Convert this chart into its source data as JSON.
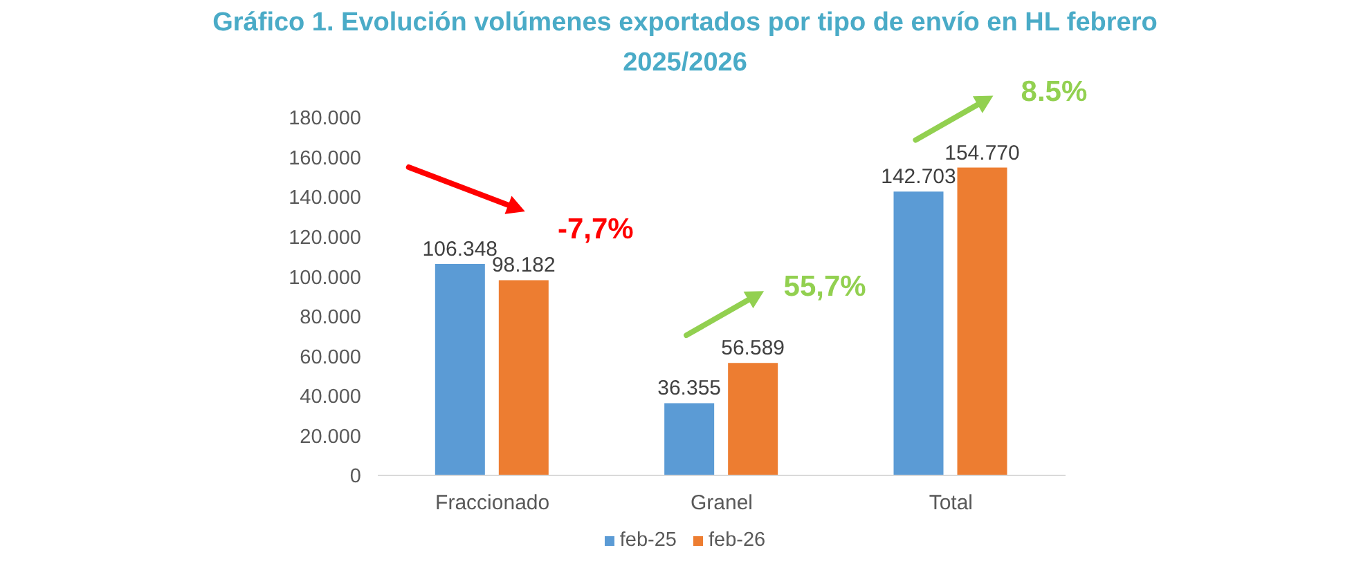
{
  "chart_data": {
    "type": "bar",
    "title": "Gráfico 1. Evolución volúmenes exportados por tipo de envío en HL febrero 2025/2026",
    "categories": [
      "Fraccionado",
      "Granel",
      "Total"
    ],
    "series": [
      {
        "name": "feb-25",
        "color": "#5b9bd5",
        "values": [
          106348,
          36355,
          142703
        ],
        "value_labels": [
          "106.348",
          "36.355",
          "142.703"
        ]
      },
      {
        "name": "feb-26",
        "color": "#ed7d31",
        "values": [
          98182,
          56589,
          154770
        ],
        "value_labels": [
          "98.182",
          "56.589",
          "154.770"
        ]
      }
    ],
    "ylim": [
      0,
      180000
    ],
    "yticks": [
      0,
      {
        "value": 20000,
        "label": "20.000"
      },
      {
        "value": 40000,
        "label": "40.000"
      },
      {
        "value": 60000,
        "label": "60.000"
      },
      {
        "value": 80000,
        "label": "80.000"
      },
      {
        "value": 100000,
        "label": "100.000"
      },
      {
        "value": 120000,
        "label": "120.000"
      },
      {
        "value": 140000,
        "label": "140.000"
      },
      {
        "value": 160000,
        "label": "160.000"
      },
      {
        "value": 180000,
        "label": "180.000"
      }
    ],
    "legend": "bottom",
    "annotations": [
      "-7,7%",
      "55,7%",
      "8.5%"
    ]
  }
}
